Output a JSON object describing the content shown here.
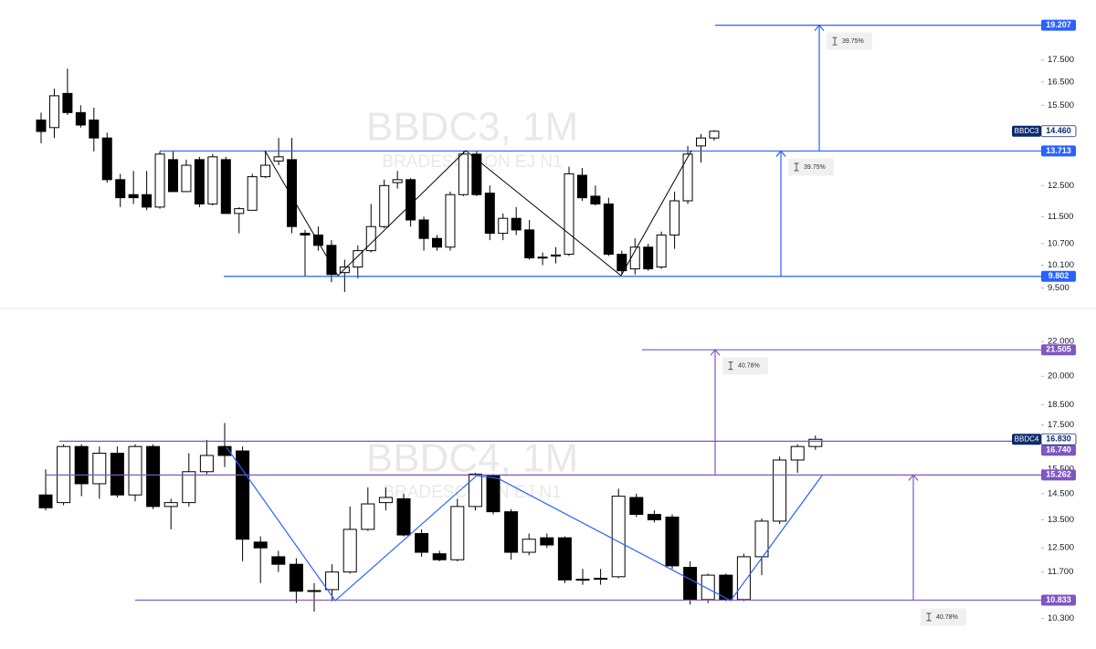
{
  "chart_data": [
    {
      "type": "candlestick",
      "title": "BBDC3, 1M",
      "subtitle": "BRADESCO ON EJ N1",
      "symbol": "BBDC3",
      "last": {
        "value": 14.46,
        "label": "14.460"
      },
      "log_scale": true,
      "ylim": [
        9.17,
        20.55
      ],
      "yticks": [
        {
          "value": 17.5,
          "label": "17.500"
        },
        {
          "value": 16.5,
          "label": "16.500"
        },
        {
          "value": 15.5,
          "label": "15.500"
        },
        {
          "value": 12.5,
          "label": "12.500"
        },
        {
          "value": 11.5,
          "label": "11.500"
        },
        {
          "value": 10.7,
          "label": "10.700"
        },
        {
          "value": 10.1,
          "label": "10.100"
        },
        {
          "value": 9.5,
          "label": "9.500"
        }
      ],
      "up_color": "#ffffff",
      "down_color": "#000000",
      "level_color": "#2962ff",
      "last_color": "#0d2a6e",
      "open": [
        14.9,
        14.6,
        16.0,
        15.2,
        14.9,
        14.2,
        12.7,
        12.2,
        12.2,
        11.8,
        13.4,
        12.3,
        13.4,
        11.9,
        13.4,
        11.6,
        11.7,
        12.8,
        13.35,
        13.4,
        11.0,
        10.95,
        10.65,
        9.9,
        10.05,
        10.5,
        11.2,
        12.6,
        12.7,
        11.4,
        10.85,
        10.6,
        12.2,
        13.6,
        12.25,
        11.0,
        11.45,
        11.1,
        10.3,
        10.35,
        10.4,
        12.85,
        12.15,
        11.9,
        10.4,
        10.0,
        10.6,
        10.05,
        10.95,
        12.0,
        13.9,
        14.2
      ],
      "high": [
        15.2,
        16.2,
        17.1,
        15.5,
        15.4,
        14.4,
        12.9,
        13.0,
        13.0,
        13.7,
        13.7,
        13.4,
        13.5,
        13.6,
        13.5,
        11.8,
        12.9,
        13.7,
        14.2,
        14.2,
        11.1,
        11.2,
        10.8,
        10.25,
        10.65,
        11.9,
        12.7,
        13.0,
        12.75,
        11.5,
        10.95,
        12.3,
        13.7,
        13.7,
        12.5,
        11.6,
        11.8,
        11.4,
        10.45,
        10.6,
        13.15,
        13.1,
        12.5,
        12.1,
        10.5,
        10.85,
        10.7,
        11.05,
        12.3,
        13.9,
        14.35,
        14.5
      ],
      "low": [
        14.0,
        14.2,
        15.1,
        14.6,
        13.7,
        12.6,
        11.8,
        11.9,
        11.7,
        11.75,
        12.3,
        12.3,
        11.8,
        11.85,
        11.6,
        11.0,
        11.7,
        12.75,
        13.2,
        11.0,
        9.8,
        10.5,
        9.65,
        9.4,
        9.75,
        10.45,
        11.15,
        12.4,
        11.2,
        10.5,
        10.5,
        10.5,
        12.15,
        12.15,
        10.8,
        10.8,
        10.95,
        10.25,
        10.1,
        10.15,
        10.35,
        12.0,
        11.85,
        10.35,
        9.85,
        9.85,
        9.95,
        10.0,
        10.55,
        11.9,
        13.3,
        14.1
      ],
      "close": [
        14.45,
        15.9,
        15.2,
        14.7,
        14.2,
        12.7,
        12.1,
        12.1,
        11.8,
        13.6,
        12.3,
        13.2,
        11.9,
        13.5,
        11.6,
        11.75,
        12.8,
        13.2,
        13.5,
        11.2,
        10.95,
        10.65,
        9.85,
        10.05,
        10.5,
        11.2,
        12.5,
        12.7,
        11.4,
        10.85,
        10.6,
        12.2,
        13.6,
        12.2,
        11.0,
        11.45,
        11.1,
        10.3,
        10.32,
        10.38,
        12.9,
        12.1,
        11.9,
        10.4,
        9.95,
        10.6,
        10.0,
        10.95,
        12.0,
        13.6,
        14.2,
        14.46
      ],
      "levels": [
        19.207,
        13.713,
        9.802
      ],
      "measures": [
        {
          "from": 13.713,
          "to": 19.207,
          "label": "39.75%"
        },
        {
          "from": 9.802,
          "to": 13.713,
          "label": "39.75%"
        }
      ]
    },
    {
      "type": "candlestick",
      "title": "BBDC4, 1M",
      "subtitle": "BRADESCO PN EJ N1",
      "symbol": "BBDC4",
      "last": {
        "value": 16.83,
        "label": "16.830"
      },
      "log_scale": true,
      "ylim": [
        9.74,
        23.66
      ],
      "yticks": [
        {
          "value": 22,
          "label": "22.000"
        },
        {
          "value": 20,
          "label": "20.000"
        },
        {
          "value": 18.5,
          "label": "18.500"
        },
        {
          "value": 17.5,
          "label": "17.500"
        },
        {
          "value": 15.5,
          "label": "15.500"
        },
        {
          "value": 14.5,
          "label": "14.500"
        },
        {
          "value": 13.5,
          "label": "13.500"
        },
        {
          "value": 12.5,
          "label": "12.500"
        },
        {
          "value": 11.7,
          "label": "11.700"
        },
        {
          "value": 10.3,
          "label": "10.300"
        }
      ],
      "up_color": "#ffffff",
      "down_color": "#000000",
      "level_color": "#7e57c2",
      "last_color": "#0d2a6e",
      "open": [
        14.45,
        14.15,
        16.5,
        14.9,
        16.2,
        14.45,
        16.5,
        14.0,
        14.15,
        15.4,
        16.5,
        16.3,
        12.7,
        12.2,
        11.95,
        11.1,
        11.15,
        11.7,
        13.15,
        14.15,
        14.3,
        13.0,
        12.3,
        12.1,
        14.0,
        15.25,
        13.8,
        12.35,
        12.85,
        12.85,
        11.45,
        11.48,
        11.55,
        14.35,
        13.7,
        13.6,
        11.85,
        10.85,
        11.6,
        10.85,
        12.2,
        13.45,
        15.9,
        16.5
      ],
      "high": [
        15.5,
        16.6,
        16.6,
        16.5,
        16.5,
        16.6,
        16.6,
        14.3,
        16.2,
        16.8,
        17.6,
        16.5,
        12.9,
        12.4,
        12.15,
        11.35,
        11.95,
        14.0,
        14.75,
        14.75,
        14.5,
        13.15,
        12.4,
        14.3,
        15.35,
        15.3,
        13.9,
        13.0,
        13.0,
        12.9,
        11.8,
        11.8,
        14.7,
        14.5,
        13.85,
        13.7,
        12.05,
        11.65,
        11.65,
        12.3,
        13.55,
        16.05,
        16.6,
        17.0
      ],
      "low": [
        13.85,
        14.05,
        14.4,
        14.3,
        14.35,
        14.2,
        13.9,
        13.15,
        14.0,
        15.3,
        15.6,
        12.05,
        11.35,
        11.7,
        10.75,
        10.5,
        10.8,
        11.65,
        13.1,
        13.85,
        12.9,
        12.2,
        12.05,
        12.05,
        13.85,
        13.7,
        12.1,
        12.25,
        12.5,
        11.35,
        11.3,
        11.3,
        11.5,
        13.6,
        13.4,
        11.8,
        10.7,
        10.75,
        10.8,
        10.8,
        11.6,
        13.35,
        15.35,
        16.35
      ],
      "close": [
        13.95,
        16.5,
        14.9,
        16.2,
        14.45,
        16.5,
        14.0,
        14.15,
        15.4,
        16.1,
        16.1,
        12.8,
        12.5,
        11.95,
        11.1,
        11.12,
        11.7,
        13.15,
        14.1,
        14.35,
        12.95,
        12.35,
        12.1,
        14.0,
        15.3,
        13.8,
        12.35,
        12.8,
        12.6,
        11.45,
        11.47,
        11.5,
        14.4,
        13.7,
        13.5,
        11.9,
        10.85,
        11.6,
        10.85,
        12.2,
        13.45,
        15.9,
        16.5,
        16.83
      ],
      "levels": [
        21.505,
        {
          "value": 16.74,
          "label": "16.740"
        },
        15.262,
        10.833
      ],
      "measures": [
        {
          "from": 15.262,
          "to": 21.505,
          "label": "40.78%"
        },
        {
          "from": 10.833,
          "to": 15.262,
          "label": "40.78%"
        }
      ]
    }
  ]
}
